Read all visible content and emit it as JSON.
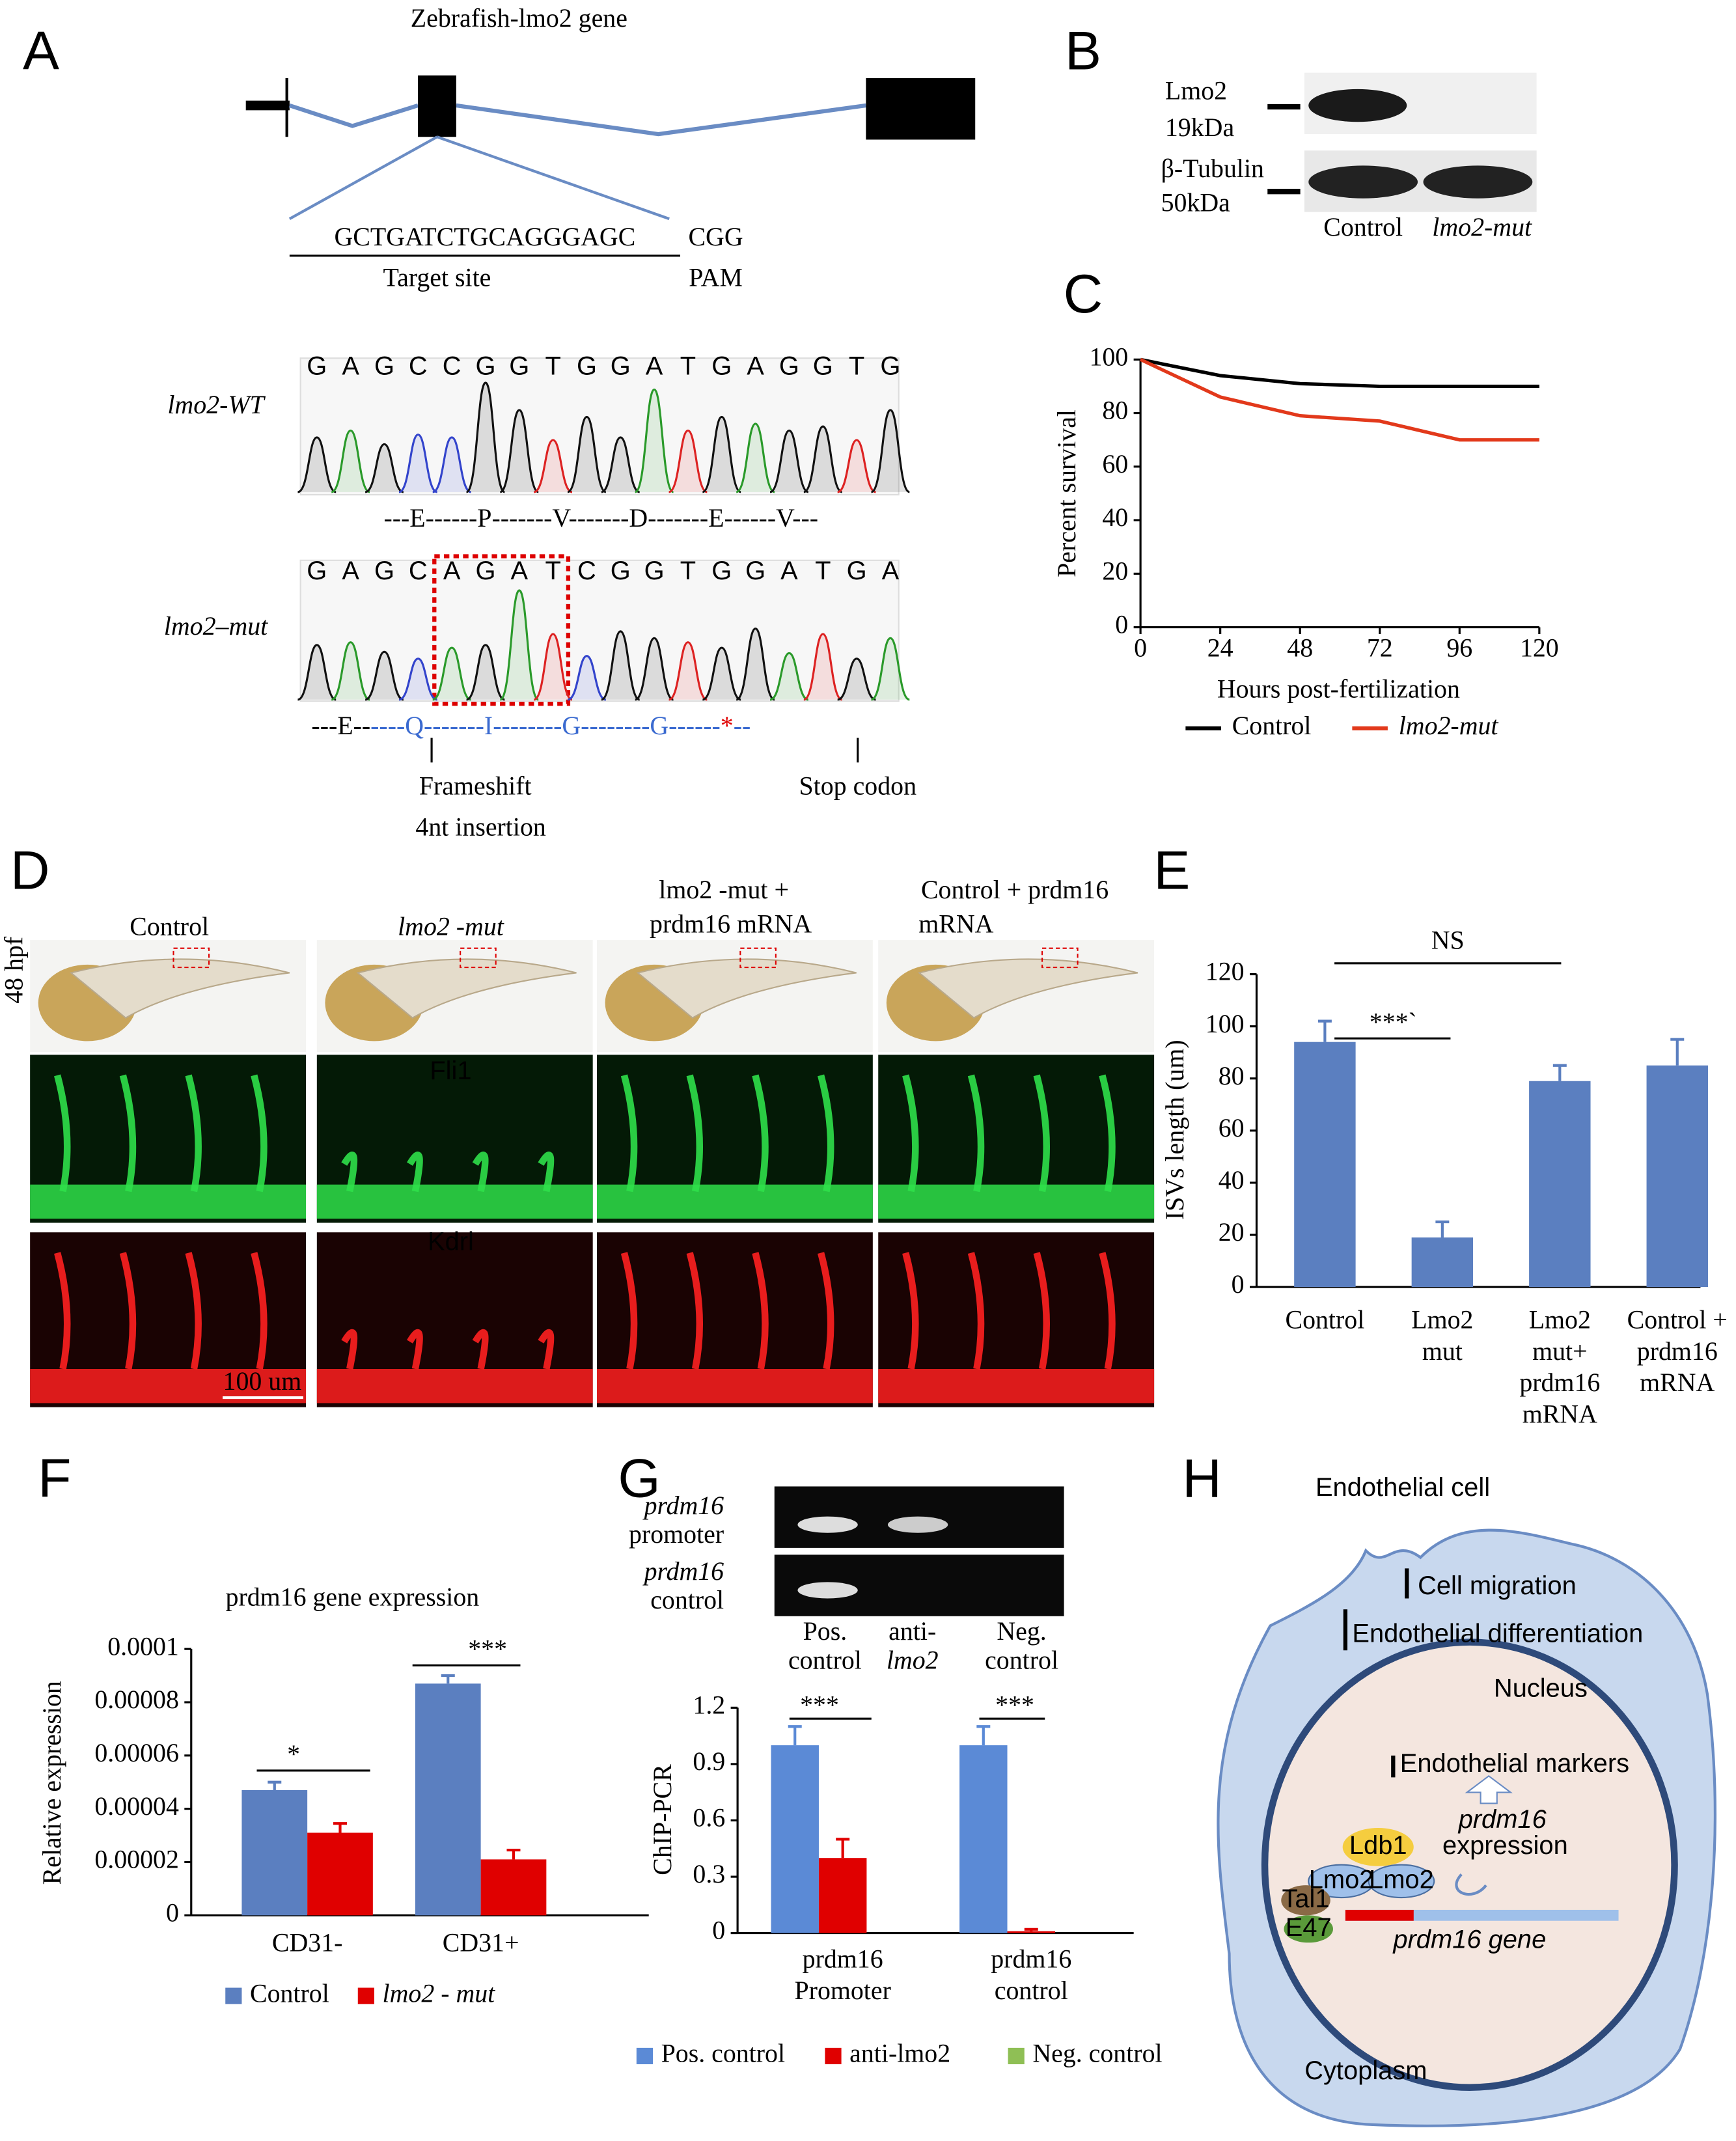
{
  "panels": {
    "A": {
      "letter": "A",
      "gene_title": "Zebrafish-lmo2 gene",
      "target_seq": "GCTGATCTGCAGGGAGC",
      "pam_seq": "CGG",
      "target_label": "Target site",
      "pam_label": "PAM",
      "wt_label": "lmo2-WT",
      "wt_bases": [
        "G",
        "A",
        "G",
        "C",
        "C",
        "G",
        "G",
        "T",
        "G",
        "G",
        "A",
        "T",
        "G",
        "A",
        "G",
        "G",
        "T",
        "G"
      ],
      "wt_protein": "---E------P-------V-------D-------E------V---",
      "mut_label": "lmo2–mut",
      "mut_bases": [
        "G",
        "A",
        "G",
        "C",
        "A",
        "G",
        "A",
        "T",
        "C",
        "G",
        "G",
        "T",
        "G",
        "G",
        "A",
        "T",
        "G",
        "A"
      ],
      "mut_protein_prefix": "---E--",
      "mut_protein": "----Q-------I--------G--------G------",
      "mut_stop": "*",
      "mut_protein_suffix": "--",
      "frameshift": "Frameshift",
      "insertion": "4nt insertion",
      "stop": "Stop codon"
    },
    "B": {
      "letter": "B",
      "band1": "Lmo2",
      "band1_kda": "19kDa",
      "band2": "β-Tubulin",
      "band2_kda": "50kDa",
      "lane1": "Control",
      "lane2": "lmo2-mut"
    },
    "C": {
      "letter": "C"
    },
    "D": {
      "letter": "D",
      "stage": "48 hpf",
      "col1": "Control",
      "col2": "lmo2 -mut",
      "col3a": "lmo2 -mut +",
      "col3b": "prdm16 mRNA",
      "col4a": "Control + prdm16",
      "col4b": "mRNA",
      "green": "Fli1",
      "red": "Kdrl",
      "scale": "100 um"
    },
    "E": {
      "letter": "E"
    },
    "F": {
      "letter": "F"
    },
    "G": {
      "letter": "G",
      "row1a": "prdm16",
      "row1b": "promoter",
      "row2a": "prdm16",
      "row2b": "control",
      "lane1a": "Pos.",
      "lane1b": "control",
      "lane2a": "anti-",
      "lane2b": "lmo2",
      "lane3a": "Neg.",
      "lane3b": "control"
    },
    "H": {
      "letter": "H",
      "cell": "Endothelial cell",
      "migration": "Cell migration",
      "differentiation": "Endothelial differentiation",
      "nucleus": "Nucleus",
      "markers": "Endothelial markers",
      "prdm16": "prdm16",
      "expression": "expression",
      "ldb1": "Ldb1",
      "lmo2a": "Lmo2",
      "lmo2b": "Lmo2",
      "tal1": "Tal1",
      "e47": "E47",
      "gene": "prdm16 gene",
      "cytoplasm": "Cytoplasm"
    }
  },
  "chart_data": [
    {
      "type": "line",
      "x_label": "Hours post-fertilization",
      "y_label": "Percent survival",
      "x": [
        0,
        24,
        48,
        72,
        96,
        120
      ],
      "xlim": [
        0,
        120
      ],
      "xticks": [
        0,
        24,
        48,
        72,
        96,
        120
      ],
      "ylim": [
        0,
        100
      ],
      "yticks": [
        0,
        20,
        40,
        60,
        80,
        100
      ],
      "series": [
        {
          "name": "Control",
          "color": "#000000",
          "values": [
            100,
            94,
            91,
            90,
            90,
            90
          ]
        },
        {
          "name": "lmo2-mut",
          "color": "#e2391b",
          "values": [
            100,
            86,
            79,
            77,
            70,
            70
          ]
        }
      ]
    },
    {
      "type": "bar",
      "y_label": "ISVs length (um)",
      "categories": [
        "Control",
        "Lmo2\nmut",
        "Lmo2\nmut+\nprdm16\nmRNA",
        "Control +\nprdm16\nmRNA"
      ],
      "series": [
        {
          "color": "#5b7fc0",
          "values": [
            94,
            19,
            79,
            85
          ],
          "errors": [
            8,
            6,
            6,
            10
          ]
        }
      ],
      "ylim": [
        0,
        120
      ],
      "yticks": [
        0,
        20,
        40,
        60,
        80,
        100,
        120
      ],
      "annotations": [
        "***`",
        "NS"
      ]
    },
    {
      "type": "bar",
      "title": "prdm16 gene expression",
      "y_label": "Relative expression",
      "categories": [
        "CD31-",
        "CD31+"
      ],
      "series": [
        {
          "name": "Control",
          "color": "#5b7fc0",
          "values": [
            4.7e-05,
            8.7e-05
          ],
          "errors": [
            3e-06,
            3e-06
          ]
        },
        {
          "name": "lmo2 - mut",
          "color": "#e00000",
          "values": [
            3.1e-05,
            2.1e-05
          ],
          "errors": [
            3.5e-06,
            3.5e-06
          ]
        }
      ],
      "ylim": [
        0,
        0.0001
      ],
      "yticks": [
        0,
        2e-05,
        4e-05,
        6e-05,
        8e-05,
        0.0001
      ],
      "annotations": [
        "*",
        "***"
      ]
    },
    {
      "type": "bar",
      "y_label": "ChIP-PCR",
      "categories": [
        "prdm16\nPromoter",
        "prdm16\ncontrol"
      ],
      "series": [
        {
          "name": "Pos. control",
          "color": "#5b8ad6",
          "values": [
            1,
            1
          ],
          "errors": [
            0.1,
            0.1
          ]
        },
        {
          "name": "anti-lmo2",
          "color": "#e00000",
          "values": [
            0.4,
            0.01
          ],
          "errors": [
            0.1,
            0.01
          ]
        },
        {
          "name": "Neg. control",
          "color": "#8fbf55",
          "values": [
            0,
            0
          ],
          "errors": [
            0,
            0
          ]
        }
      ],
      "ylim": [
        0,
        1.2
      ],
      "yticks": [
        0,
        0.3,
        0.6,
        0.9,
        1.2
      ],
      "annotations": [
        "***",
        "***"
      ]
    }
  ]
}
